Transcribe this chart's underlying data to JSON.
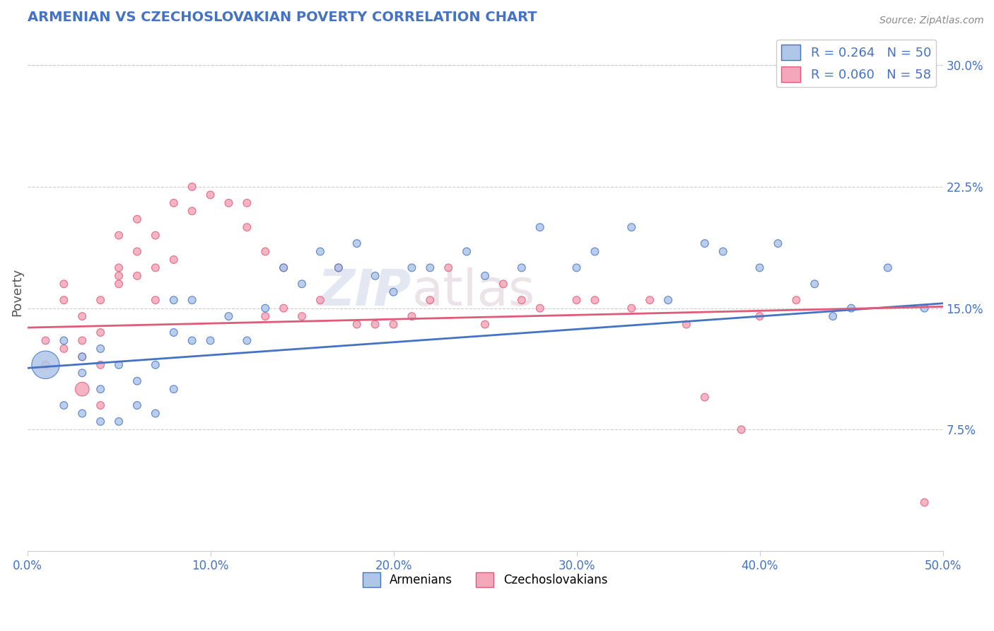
{
  "title": "ARMENIAN VS CZECHOSLOVAKIAN POVERTY CORRELATION CHART",
  "source": "Source: ZipAtlas.com",
  "ylabel": "Poverty",
  "xlim": [
    0.0,
    0.5
  ],
  "ylim": [
    0.0,
    0.32
  ],
  "xticks": [
    0.0,
    0.1,
    0.2,
    0.3,
    0.4,
    0.5
  ],
  "yticks": [
    0.075,
    0.15,
    0.225,
    0.3
  ],
  "ytick_labels": [
    "7.5%",
    "15.0%",
    "22.5%",
    "30.0%"
  ],
  "xtick_labels": [
    "0.0%",
    "10.0%",
    "20.0%",
    "30.0%",
    "40.0%",
    "50.0%"
  ],
  "armenian_color": "#aec6e8",
  "czechoslovakian_color": "#f4a7b9",
  "line_armenian_color": "#4472c4",
  "line_czechoslovakian_color": "#e05a7a",
  "R_armenian": 0.264,
  "N_armenian": 50,
  "R_czechoslovakian": 0.06,
  "N_czechoslovakian": 58,
  "armenian_x": [
    0.01,
    0.02,
    0.02,
    0.03,
    0.03,
    0.03,
    0.04,
    0.04,
    0.04,
    0.05,
    0.05,
    0.06,
    0.06,
    0.07,
    0.07,
    0.08,
    0.08,
    0.08,
    0.09,
    0.09,
    0.1,
    0.11,
    0.12,
    0.13,
    0.14,
    0.15,
    0.16,
    0.17,
    0.18,
    0.19,
    0.2,
    0.21,
    0.22,
    0.24,
    0.25,
    0.27,
    0.28,
    0.3,
    0.31,
    0.33,
    0.35,
    0.37,
    0.38,
    0.4,
    0.41,
    0.43,
    0.44,
    0.45,
    0.47,
    0.49
  ],
  "armenian_y": [
    0.115,
    0.09,
    0.13,
    0.085,
    0.12,
    0.11,
    0.08,
    0.1,
    0.125,
    0.08,
    0.115,
    0.09,
    0.105,
    0.085,
    0.115,
    0.1,
    0.135,
    0.155,
    0.13,
    0.155,
    0.13,
    0.145,
    0.13,
    0.15,
    0.175,
    0.165,
    0.185,
    0.175,
    0.19,
    0.17,
    0.16,
    0.175,
    0.175,
    0.185,
    0.17,
    0.175,
    0.2,
    0.175,
    0.185,
    0.2,
    0.155,
    0.19,
    0.185,
    0.175,
    0.19,
    0.165,
    0.145,
    0.15,
    0.175,
    0.15
  ],
  "armenian_sizes": [
    800,
    60,
    60,
    60,
    60,
    60,
    60,
    60,
    60,
    60,
    60,
    60,
    60,
    60,
    60,
    60,
    60,
    60,
    60,
    60,
    60,
    60,
    60,
    60,
    60,
    60,
    60,
    60,
    60,
    60,
    60,
    60,
    60,
    60,
    60,
    60,
    60,
    60,
    60,
    60,
    60,
    60,
    60,
    60,
    60,
    60,
    60,
    60,
    60,
    60
  ],
  "czechoslovakian_x": [
    0.01,
    0.01,
    0.02,
    0.02,
    0.02,
    0.03,
    0.03,
    0.03,
    0.03,
    0.04,
    0.04,
    0.04,
    0.04,
    0.05,
    0.05,
    0.05,
    0.05,
    0.06,
    0.06,
    0.06,
    0.07,
    0.07,
    0.07,
    0.08,
    0.08,
    0.09,
    0.09,
    0.1,
    0.11,
    0.12,
    0.12,
    0.13,
    0.13,
    0.14,
    0.14,
    0.15,
    0.16,
    0.17,
    0.18,
    0.19,
    0.2,
    0.21,
    0.22,
    0.23,
    0.25,
    0.26,
    0.27,
    0.28,
    0.3,
    0.31,
    0.33,
    0.34,
    0.36,
    0.37,
    0.39,
    0.4,
    0.42,
    0.49
  ],
  "czechoslovakian_y": [
    0.13,
    0.115,
    0.125,
    0.155,
    0.165,
    0.1,
    0.12,
    0.13,
    0.145,
    0.09,
    0.115,
    0.135,
    0.155,
    0.165,
    0.17,
    0.175,
    0.195,
    0.17,
    0.185,
    0.205,
    0.155,
    0.175,
    0.195,
    0.18,
    0.215,
    0.21,
    0.225,
    0.22,
    0.215,
    0.2,
    0.215,
    0.145,
    0.185,
    0.15,
    0.175,
    0.145,
    0.155,
    0.175,
    0.14,
    0.14,
    0.14,
    0.145,
    0.155,
    0.175,
    0.14,
    0.165,
    0.155,
    0.15,
    0.155,
    0.155,
    0.15,
    0.155,
    0.14,
    0.095,
    0.075,
    0.145,
    0.155,
    0.03
  ],
  "czechoslovakian_sizes": [
    60,
    60,
    60,
    60,
    60,
    200,
    60,
    60,
    60,
    60,
    60,
    60,
    60,
    60,
    60,
    60,
    60,
    60,
    60,
    60,
    60,
    60,
    60,
    60,
    60,
    60,
    60,
    60,
    60,
    60,
    60,
    60,
    60,
    60,
    60,
    60,
    60,
    60,
    60,
    60,
    60,
    60,
    60,
    60,
    60,
    60,
    60,
    60,
    60,
    60,
    60,
    60,
    60,
    60,
    60,
    60,
    60,
    60
  ],
  "watermark_zip": "ZIP",
  "watermark_atlas": "atlas",
  "background_color": "#ffffff",
  "grid_color": "#cccccc",
  "legend_label_color": "#4472c4",
  "title_color": "#4472c4",
  "arm_line_start_x": 0.0,
  "arm_line_start_y": 0.113,
  "arm_line_end_x": 0.5,
  "arm_line_end_y": 0.153,
  "czk_line_start_x": 0.0,
  "czk_line_start_y": 0.138,
  "czk_line_end_x": 0.5,
  "czk_line_end_y": 0.151
}
